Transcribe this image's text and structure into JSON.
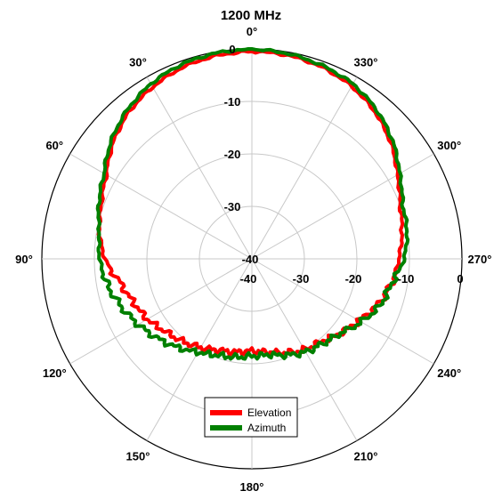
{
  "chart_data": {
    "type": "polar-line",
    "title": "1200 MHz",
    "angle_direction": "counterclockwise",
    "zero_angle_position": "top",
    "angle_ticks": [
      {
        "deg": 0,
        "label": "0°"
      },
      {
        "deg": 30,
        "label": "30°"
      },
      {
        "deg": 60,
        "label": "60°"
      },
      {
        "deg": 90,
        "label": "90°"
      },
      {
        "deg": 120,
        "label": "120°"
      },
      {
        "deg": 150,
        "label": "150°"
      },
      {
        "deg": 180,
        "label": "180°"
      },
      {
        "deg": 210,
        "label": "210°"
      },
      {
        "deg": 240,
        "label": "240°"
      },
      {
        "deg": 270,
        "label": "270°"
      },
      {
        "deg": 300,
        "label": "300°"
      },
      {
        "deg": 330,
        "label": "330°"
      }
    ],
    "r_range": [
      -40,
      0
    ],
    "r_ticks": [
      {
        "value": -40,
        "label": "-40"
      },
      {
        "value": -30,
        "label": "-30"
      },
      {
        "value": -20,
        "label": "-20"
      },
      {
        "value": -10,
        "label": "-10"
      },
      {
        "value": 0,
        "label": "0"
      }
    ],
    "grid": true,
    "legend_position": "bottom-center",
    "series": [
      {
        "name": "Elevation",
        "color": "#ff0000",
        "angles": [
          0,
          10,
          20,
          30,
          40,
          50,
          60,
          70,
          80,
          90,
          100,
          110,
          120,
          130,
          140,
          150,
          160,
          170,
          180,
          190,
          200,
          210,
          220,
          230,
          240,
          250,
          260,
          270,
          280,
          290,
          300,
          310,
          320,
          330,
          340,
          350
        ],
        "values": [
          -0.5,
          -0.7,
          -1.2,
          -2.2,
          -3.5,
          -5.5,
          -8,
          -9.5,
          -10.5,
          -12,
          -14.5,
          -16,
          -17,
          -18.5,
          -19.5,
          -20.5,
          -21.5,
          -22,
          -22.5,
          -22,
          -21,
          -20,
          -19.5,
          -18,
          -16.5,
          -14.5,
          -13,
          -12,
          -11,
          -10,
          -8,
          -5.5,
          -3.5,
          -2,
          -1.1,
          -0.6
        ]
      },
      {
        "name": "Azimuth",
        "color": "#008000",
        "angles": [
          0,
          10,
          20,
          30,
          40,
          50,
          60,
          70,
          80,
          90,
          100,
          110,
          120,
          130,
          140,
          150,
          160,
          170,
          180,
          190,
          200,
          210,
          220,
          230,
          240,
          250,
          260,
          270,
          280,
          290,
          300,
          310,
          320,
          330,
          340,
          350
        ],
        "values": [
          -0.1,
          -0.2,
          -0.6,
          -1.5,
          -3,
          -5,
          -7.5,
          -9,
          -10.5,
          -11,
          -12,
          -13.5,
          -15,
          -16.5,
          -18,
          -19.5,
          -20.5,
          -21,
          -21.5,
          -21.5,
          -20.5,
          -19.5,
          -19,
          -18,
          -16,
          -14,
          -13,
          -11,
          -10,
          -9.5,
          -7.5,
          -5,
          -3,
          -1.5,
          -0.8,
          -0.3
        ]
      }
    ]
  }
}
